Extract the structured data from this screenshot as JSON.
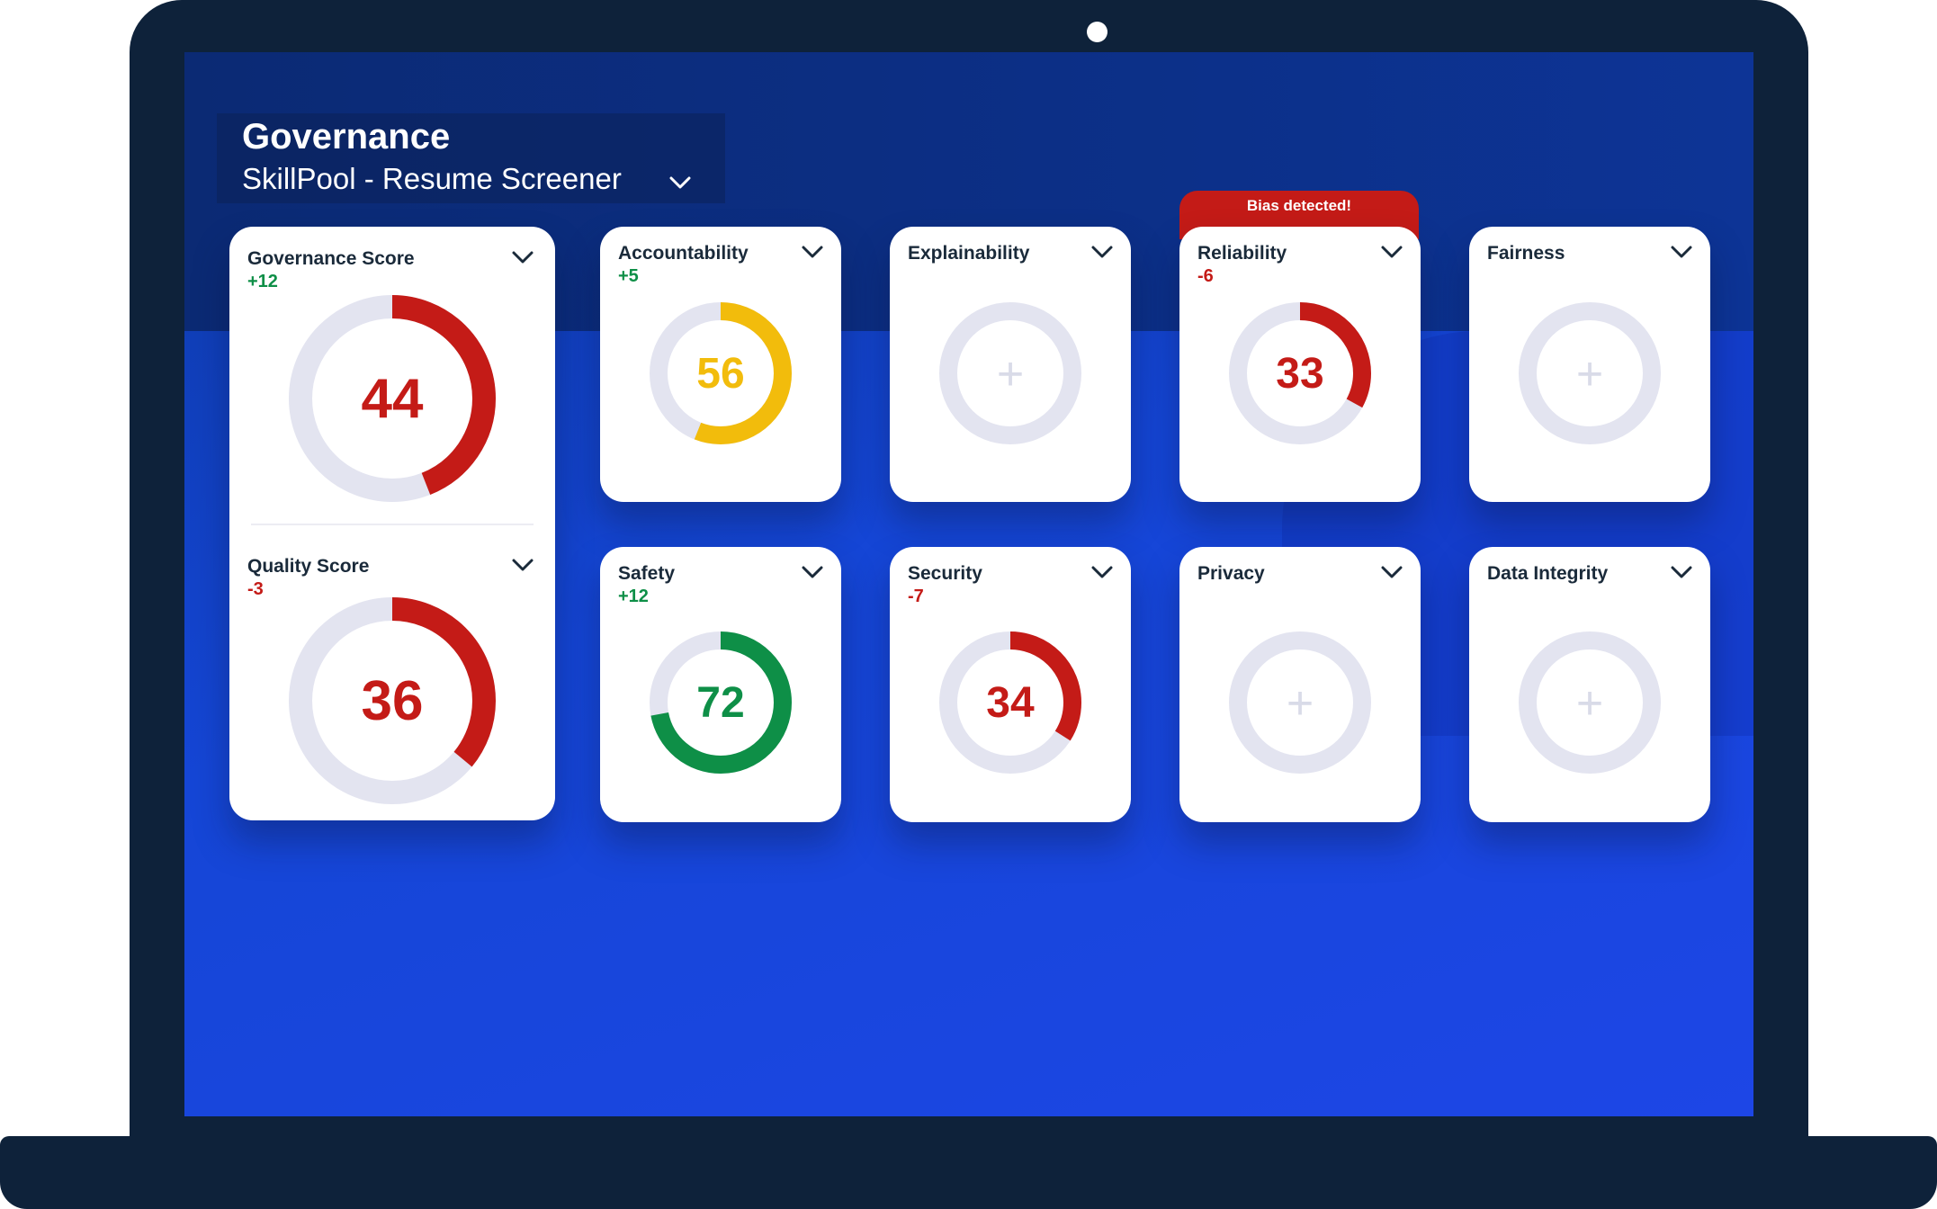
{
  "header": {
    "title": "Governance",
    "project": "SkillPool - Resume Screener"
  },
  "alert": {
    "text": "Bias detected!"
  },
  "colors": {
    "red": "#c41b17",
    "yellow": "#f2bc0c",
    "green": "#0e8f47",
    "track": "#e3e4f0",
    "positive_delta": "#0e8f47",
    "negative_delta": "#c41b17"
  },
  "summary": {
    "governance_score": {
      "title": "Governance Score",
      "delta": "+12",
      "value": "44",
      "fraction": 0.44,
      "color": "red"
    },
    "quality_score": {
      "title": "Quality Score",
      "delta": "-3",
      "value": "36",
      "fraction": 0.36,
      "color": "red"
    }
  },
  "categories": [
    {
      "title": "Accountability",
      "delta": "+5",
      "value": "56",
      "fraction": 0.56,
      "color": "yellow",
      "icon": "gauge"
    },
    {
      "title": "Explainability",
      "delta": "",
      "value": "",
      "fraction": 0,
      "color": "",
      "icon": "plus-icon"
    },
    {
      "title": "Reliability",
      "delta": "-6",
      "value": "33",
      "fraction": 0.33,
      "color": "red",
      "icon": "gauge"
    },
    {
      "title": "Fairness",
      "delta": "",
      "value": "",
      "fraction": 0,
      "color": "",
      "icon": "plus-icon"
    },
    {
      "title": "Safety",
      "delta": "+12",
      "value": "72",
      "fraction": 0.72,
      "color": "green",
      "icon": "gauge"
    },
    {
      "title": "Security",
      "delta": "-7",
      "value": "34",
      "fraction": 0.34,
      "color": "red",
      "icon": "gauge"
    },
    {
      "title": "Privacy",
      "delta": "",
      "value": "",
      "fraction": 0,
      "color": "",
      "icon": "plus-icon"
    },
    {
      "title": "Data Integrity",
      "delta": "",
      "value": "",
      "fraction": 0,
      "color": "",
      "icon": "plus-icon"
    }
  ]
}
